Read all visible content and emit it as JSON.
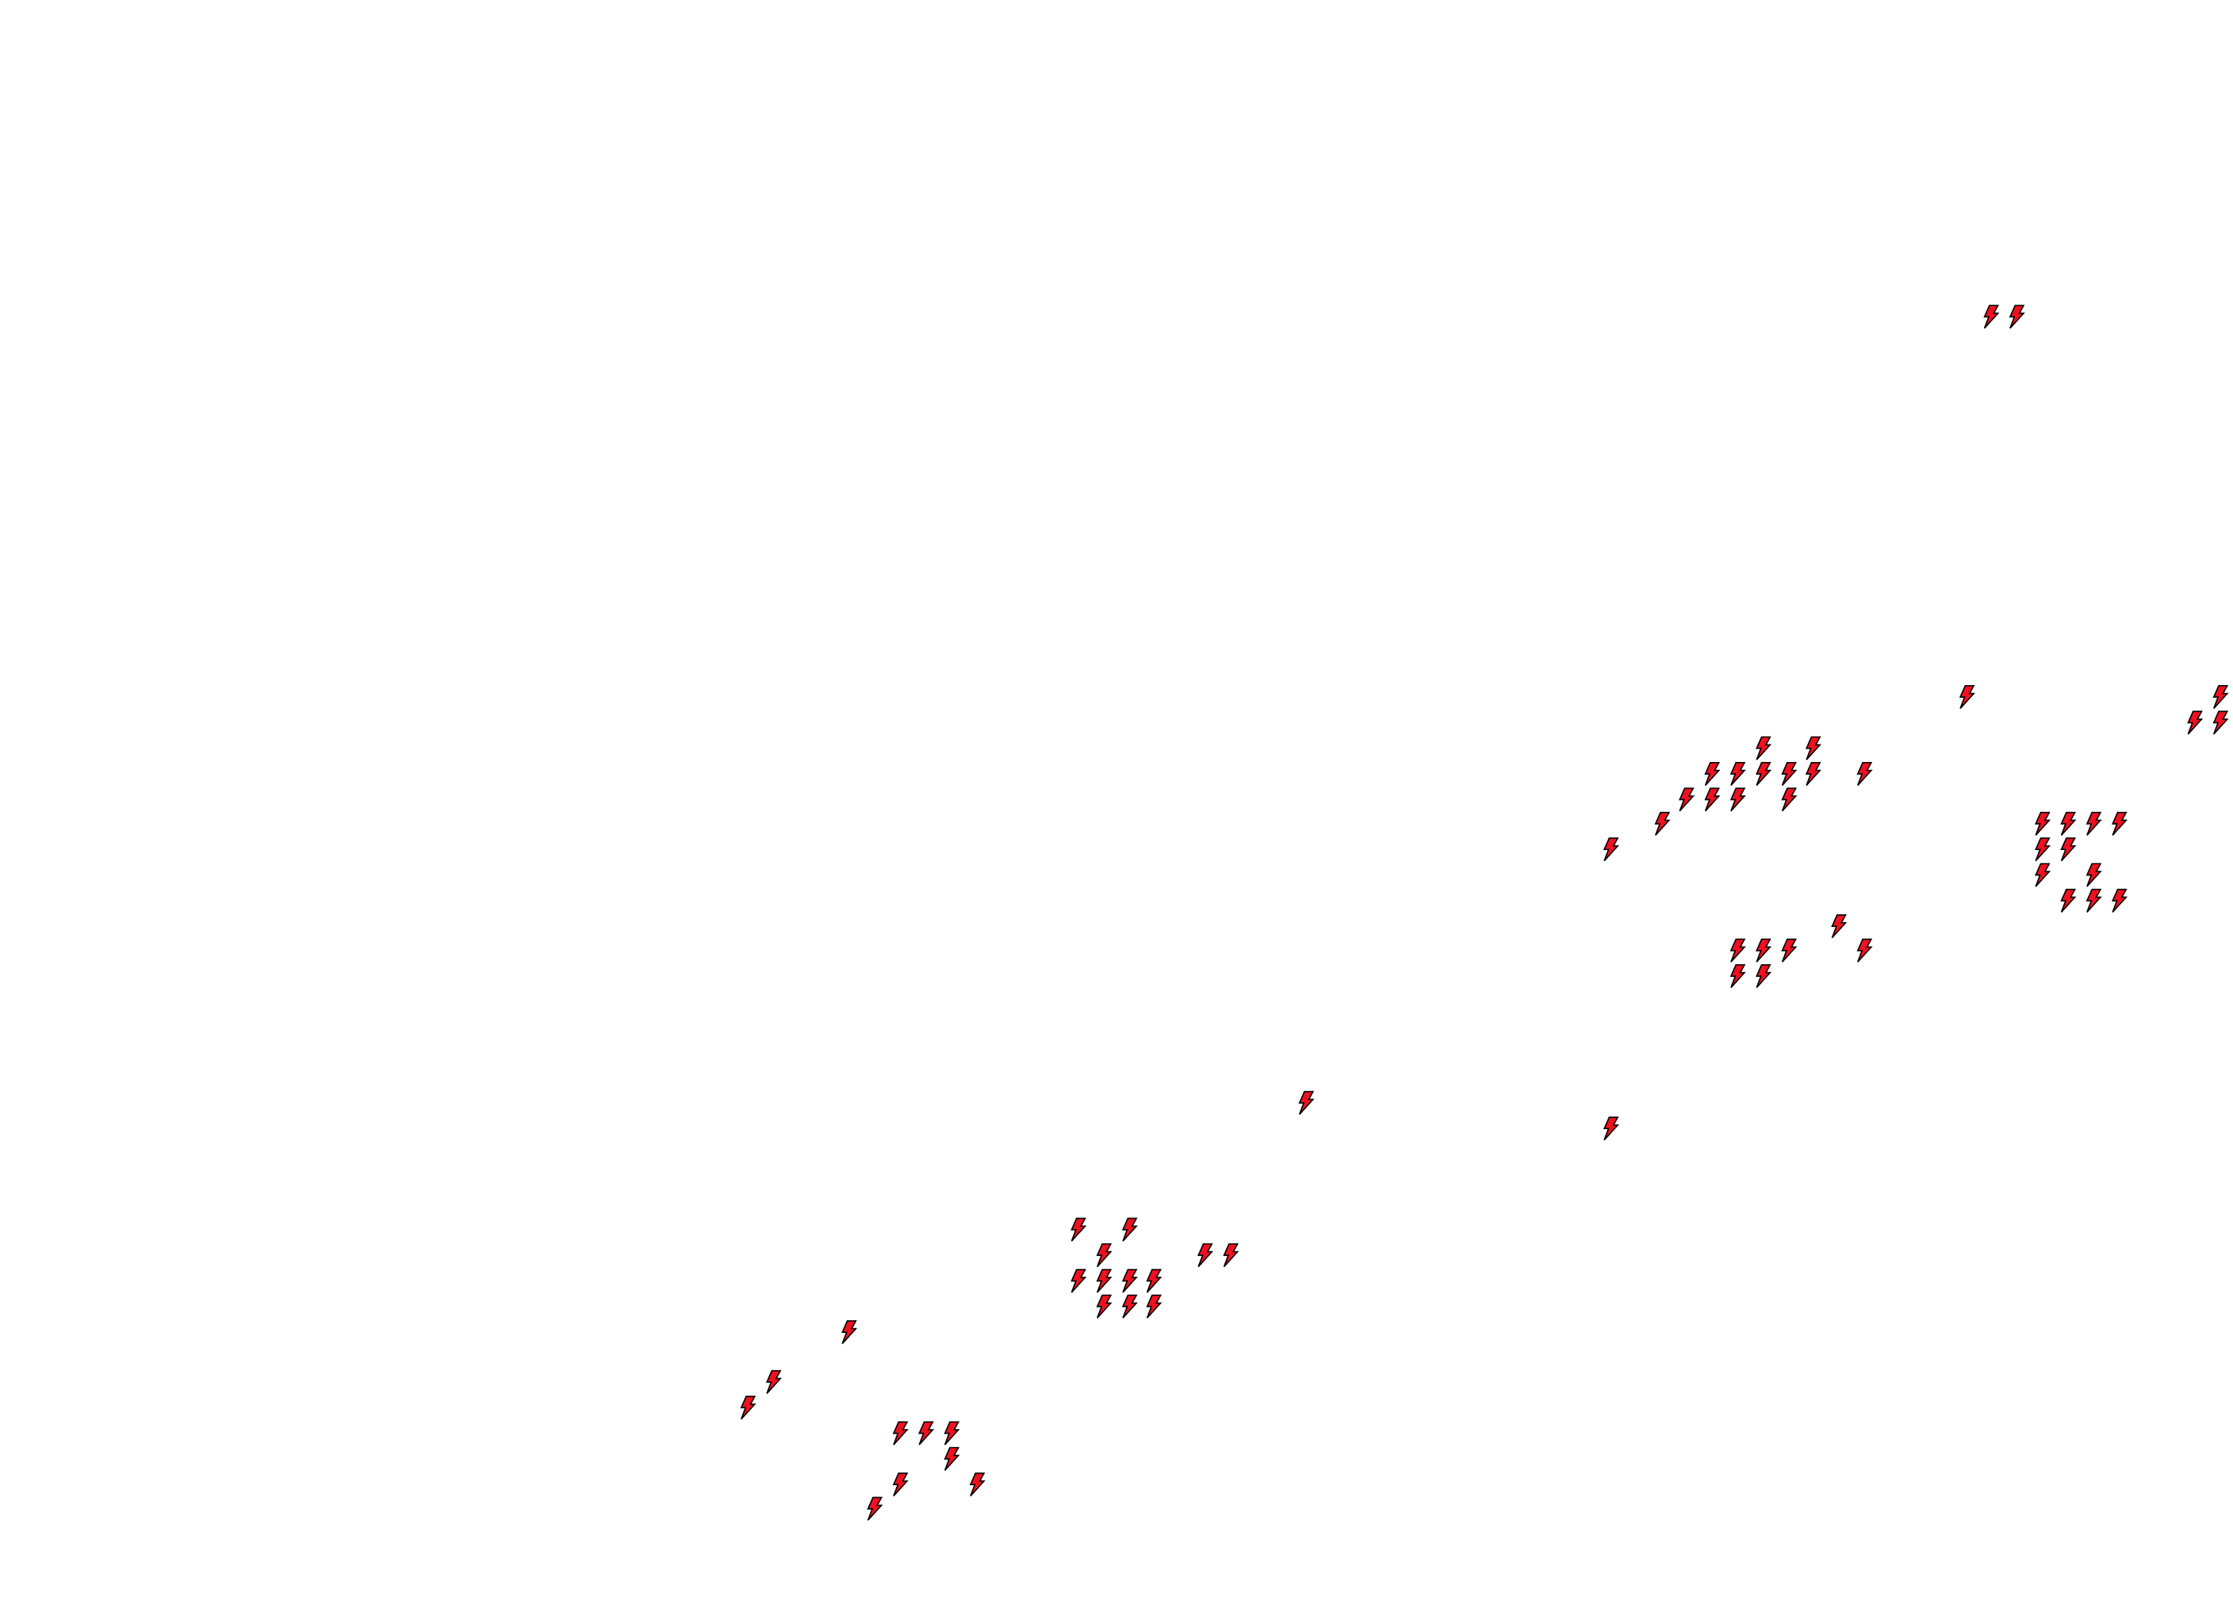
{
  "map": {
    "background": "#ffffff",
    "marker_icon": "lightning-bolt-icon",
    "marker_fill": "#f01020",
    "marker_stroke": "#000000"
  }
}
